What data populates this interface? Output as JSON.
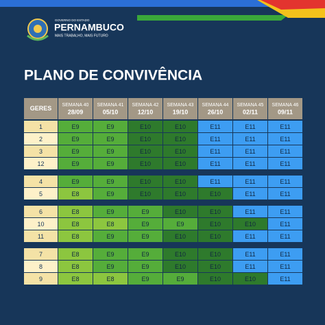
{
  "header": {
    "small_title": "GOVERNO DO ESTADO",
    "brand": "PERNAMBUCO",
    "slogan": "MAIS TRABALHO, MAIS FUTURO"
  },
  "title": "PLANO DE CONVIVÊNCIA",
  "table": {
    "first_header": "GERES",
    "columns": [
      {
        "week": "SEMANA 40",
        "date": "28/09"
      },
      {
        "week": "SEMANA 41",
        "date": "05/10"
      },
      {
        "week": "SEMANA 42",
        "date": "12/10"
      },
      {
        "week": "SEMANA 43",
        "date": "19/10"
      },
      {
        "week": "SEMANA 44",
        "date": "26/10"
      },
      {
        "week": "SEMANA 45",
        "date": "02/11"
      },
      {
        "week": "SEMANA 46",
        "date": "09/11"
      }
    ],
    "level_colors": {
      "E8": "#8cc63f",
      "E9": "#55ad3a",
      "E10": "#2e7a2c",
      "E11": "#3d9df2"
    },
    "groups": [
      [
        {
          "geres": "1",
          "cells": [
            "E9",
            "E9",
            "E10",
            "E10",
            "E11",
            "E11",
            "E11"
          ]
        },
        {
          "geres": "2",
          "cells": [
            "E9",
            "E9",
            "E10",
            "E10",
            "E11",
            "E11",
            "E11"
          ]
        },
        {
          "geres": "3",
          "cells": [
            "E9",
            "E9",
            "E10",
            "E10",
            "E11",
            "E11",
            "E11"
          ]
        },
        {
          "geres": "12",
          "cells": [
            "E9",
            "E9",
            "E10",
            "E10",
            "E11",
            "E11",
            "E11"
          ]
        }
      ],
      [
        {
          "geres": "4",
          "cells": [
            "E9",
            "E9",
            "E10",
            "E10",
            "E11",
            "E11",
            "E11"
          ]
        },
        {
          "geres": "5",
          "cells": [
            "E8",
            "E9",
            "E10",
            "E10",
            "E10",
            "E11",
            "E11"
          ]
        }
      ],
      [
        {
          "geres": "6",
          "cells": [
            "E8",
            "E9",
            "E9",
            "E10",
            "E10",
            "E11",
            "E11"
          ]
        },
        {
          "geres": "10",
          "cells": [
            "E8",
            "E8",
            "E9",
            "E9",
            "E10",
            "E10",
            "E11"
          ]
        },
        {
          "geres": "11",
          "cells": [
            "E8",
            "E9",
            "E9",
            "E10",
            "E10",
            "E11",
            "E11"
          ]
        }
      ],
      [
        {
          "geres": "7",
          "cells": [
            "E8",
            "E9",
            "E9",
            "E10",
            "E10",
            "E11",
            "E11"
          ]
        },
        {
          "geres": "8",
          "cells": [
            "E8",
            "E9",
            "E9",
            "E10",
            "E10",
            "E11",
            "E11"
          ]
        },
        {
          "geres": "9",
          "cells": [
            "E8",
            "E8",
            "E9",
            "E9",
            "E10",
            "E10",
            "E11"
          ]
        }
      ]
    ]
  }
}
